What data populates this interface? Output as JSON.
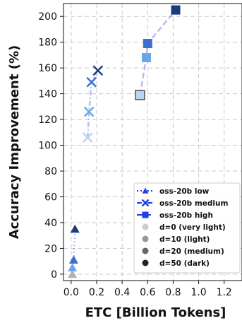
{
  "chart_data": {
    "type": "scatter",
    "xlabel": "ETC [Billion Tokens]",
    "ylabel": "Accuracy Improvement (%)",
    "xlim": [
      -0.06,
      1.34
    ],
    "ylim": [
      -5,
      210
    ],
    "xticks": [
      0.0,
      0.2,
      0.4,
      0.6,
      0.8,
      1.0,
      1.2
    ],
    "xtick_labels": [
      "0.0",
      "0.2",
      "0.4",
      "0.6",
      "0.8",
      "1.0",
      "1.2"
    ],
    "yticks": [
      0,
      20,
      40,
      60,
      80,
      100,
      120,
      140,
      160,
      180,
      200
    ],
    "ytick_labels": [
      "0",
      "20",
      "40",
      "60",
      "80",
      "100",
      "120",
      "140",
      "160",
      "180",
      "200"
    ],
    "grid": true,
    "legend_position": "lower-right",
    "series": [
      {
        "name": "oss-20b low",
        "marker": "triangle",
        "line_style": "dotted",
        "line_color": "#1f3fe0",
        "points": [
          {
            "x": 0.01,
            "y": 0,
            "d": 0,
            "color": "#a9b4bf"
          },
          {
            "x": 0.01,
            "y": 5,
            "d": 10,
            "color": "#6aa6e6"
          },
          {
            "x": 0.02,
            "y": 11,
            "d": 20,
            "color": "#3a6fcf"
          },
          {
            "x": 0.03,
            "y": 35,
            "d": 50,
            "color": "#1a3c7a"
          }
        ]
      },
      {
        "name": "oss-20b medium",
        "marker": "x",
        "line_style": "dashdot",
        "line_color": "#1f3fe0",
        "points": [
          {
            "x": 0.13,
            "y": 106,
            "d": 0,
            "color": "#b9d4ee"
          },
          {
            "x": 0.14,
            "y": 126,
            "d": 10,
            "color": "#6aa6e6"
          },
          {
            "x": 0.16,
            "y": 149,
            "d": 20,
            "color": "#3a6fcf"
          },
          {
            "x": 0.21,
            "y": 158,
            "d": 50,
            "color": "#1a3c7a"
          }
        ]
      },
      {
        "name": "oss-20b high",
        "marker": "square",
        "line_style": "dashed",
        "line_color": "#1f3fe0",
        "points": [
          {
            "x": 0.54,
            "y": 139,
            "d": 0,
            "color": "#b9d4ee"
          },
          {
            "x": 0.59,
            "y": 168,
            "d": 10,
            "color": "#6aa6e6"
          },
          {
            "x": 0.6,
            "y": 179,
            "d": 20,
            "color": "#3a6fcf"
          },
          {
            "x": 0.82,
            "y": 205,
            "d": 50,
            "color": "#1a3c7a"
          }
        ]
      }
    ],
    "legend": [
      {
        "label": "oss-20b low",
        "kind": "series",
        "marker": "triangle",
        "line_style": "dotted",
        "color": "#1f3fe0"
      },
      {
        "label": "oss-20b medium",
        "kind": "series",
        "marker": "x",
        "line_style": "dashdot",
        "color": "#1f3fe0"
      },
      {
        "label": "oss-20b high",
        "kind": "series",
        "marker": "square",
        "line_style": "dashed",
        "color": "#1f3fe0"
      },
      {
        "label": "d=0 (very light)",
        "kind": "shade",
        "color": "#cccccc"
      },
      {
        "label": "d=10 (light)",
        "kind": "shade",
        "color": "#999999"
      },
      {
        "label": "d=20 (medium)",
        "kind": "shade",
        "color": "#666666"
      },
      {
        "label": "d=50 (dark)",
        "kind": "shade",
        "color": "#222222"
      }
    ]
  }
}
